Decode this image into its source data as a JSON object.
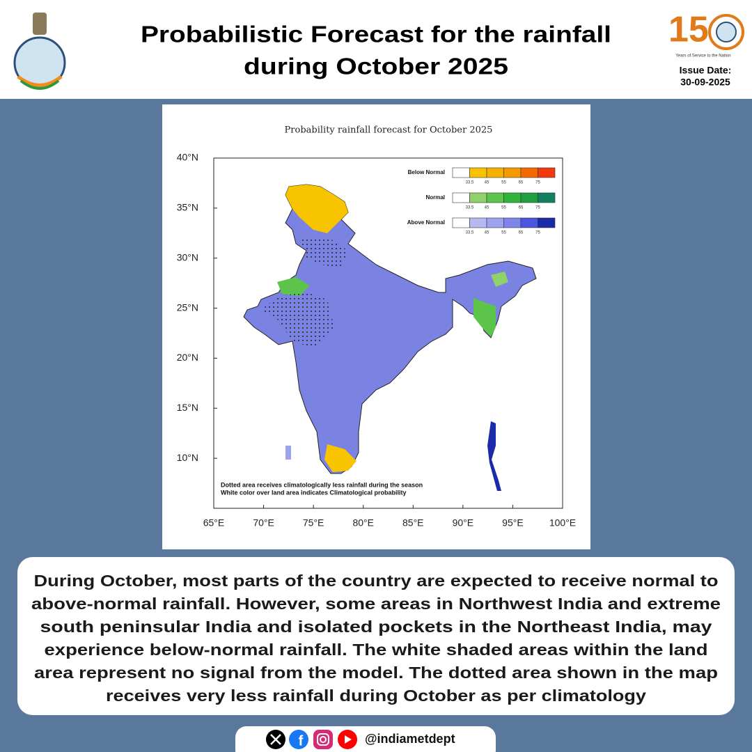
{
  "header": {
    "title_lines": [
      "Probabilistic Forecast for the rainfall",
      "during October 2025"
    ],
    "logo_number": "15",
    "logo_caption": "Years of Service to the Nation",
    "issue_date_label": "Issue Date:",
    "issue_date": "30-09-2025"
  },
  "map": {
    "title": "Probability rainfall forecast for October 2025",
    "latlim": [
      5,
      40
    ],
    "lonlim": [
      65,
      100
    ],
    "lat_ticks": [
      {
        "value": 40,
        "label": "40°N"
      },
      {
        "value": 35,
        "label": "35°N"
      },
      {
        "value": 30,
        "label": "30°N"
      },
      {
        "value": 25,
        "label": "25°N"
      },
      {
        "value": 20,
        "label": "20°N"
      },
      {
        "value": 15,
        "label": "15°N"
      },
      {
        "value": 10,
        "label": "10°N"
      }
    ],
    "lon_ticks": [
      {
        "value": 65,
        "label": "65°E"
      },
      {
        "value": 70,
        "label": "70°E"
      },
      {
        "value": 75,
        "label": "75°E"
      },
      {
        "value": 80,
        "label": "80°E"
      },
      {
        "value": 85,
        "label": "85°E"
      },
      {
        "value": 90,
        "label": "90°E"
      },
      {
        "value": 95,
        "label": "95°E"
      },
      {
        "value": 100,
        "label": "100°E"
      }
    ],
    "legend": [
      {
        "name": "Below Normal",
        "colors": [
          "#ffffff",
          "#f8c400",
          "#f6b000",
          "#f59a00",
          "#f56a00",
          "#f23a10"
        ],
        "ticks": [
          33.5,
          45,
          55,
          65,
          75
        ]
      },
      {
        "name": "Normal",
        "colors": [
          "#ffffff",
          "#8fd16a",
          "#5cc44a",
          "#2fb53a",
          "#1fa040",
          "#138060"
        ],
        "ticks": [
          33.5,
          45,
          55,
          65,
          75
        ]
      },
      {
        "name": "Above Normal",
        "colors": [
          "#ffffff",
          "#b6baf2",
          "#9ea2ee",
          "#7e84ea",
          "#4b55e0",
          "#1a2aa8"
        ],
        "ticks": [
          33.5,
          45,
          55,
          65,
          75
        ]
      }
    ],
    "notes": [
      "Dotted area receives climatologically less rainfall during the season",
      "White color over land area indicates Climatological probability"
    ]
  },
  "body": {
    "lines": [
      "During October, most parts of the country are expected to receive normal to",
      "above-normal rainfall. However, some areas in Northwest India and extreme",
      "south peninsular India and isolated pockets in the Northeast India, may",
      "experience below-normal rainfall. The white shaded areas within the land",
      "area represent no signal from the model.  The dotted area shown in the map",
      "receives very less rainfall during October as per climatology"
    ]
  },
  "footer": {
    "handle": "@indiametdept"
  }
}
